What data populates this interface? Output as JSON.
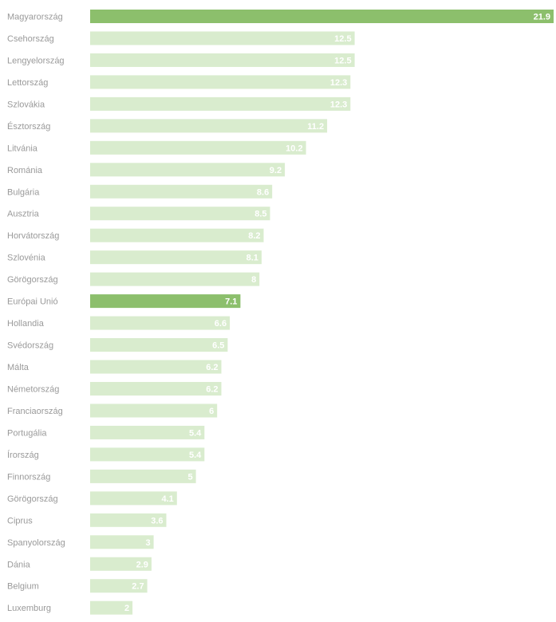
{
  "chart_data": {
    "type": "bar",
    "orientation": "horizontal",
    "title": "",
    "xlabel": "",
    "ylabel": "",
    "xlim": [
      0,
      21.9
    ],
    "grid": false,
    "legend": "none",
    "colors": {
      "highlight": "#8cbf6c",
      "default": "#d9ecce"
    },
    "categories": [
      "Magyarország",
      "Csehország",
      "Lengyelország",
      "Lettország",
      "Szlovákia",
      "Észtország",
      "Litvánia",
      "Románia",
      "Bulgária",
      "Ausztria",
      "Horvátország",
      "Szlovénia",
      "Görögország",
      "Európai Unió",
      "Hollandia",
      "Svédország",
      "Málta",
      "Németország",
      "Franciaország",
      "Portugália",
      "Írország",
      "Finnország",
      "Görögország",
      "Ciprus",
      "Spanyolország",
      "Dánia",
      "Belgium",
      "Luxemburg"
    ],
    "values": [
      21.9,
      12.5,
      12.5,
      12.3,
      12.3,
      11.2,
      10.2,
      9.2,
      8.6,
      8.5,
      8.2,
      8.1,
      8.0,
      7.1,
      6.6,
      6.5,
      6.2,
      6.2,
      6.0,
      5.4,
      5.4,
      5.0,
      4.1,
      3.6,
      3.0,
      2.9,
      2.7,
      2.0
    ],
    "highlight": [
      true,
      false,
      false,
      false,
      false,
      false,
      false,
      false,
      false,
      false,
      false,
      false,
      false,
      true,
      false,
      false,
      false,
      false,
      false,
      false,
      false,
      false,
      false,
      false,
      false,
      false,
      false,
      false
    ]
  }
}
